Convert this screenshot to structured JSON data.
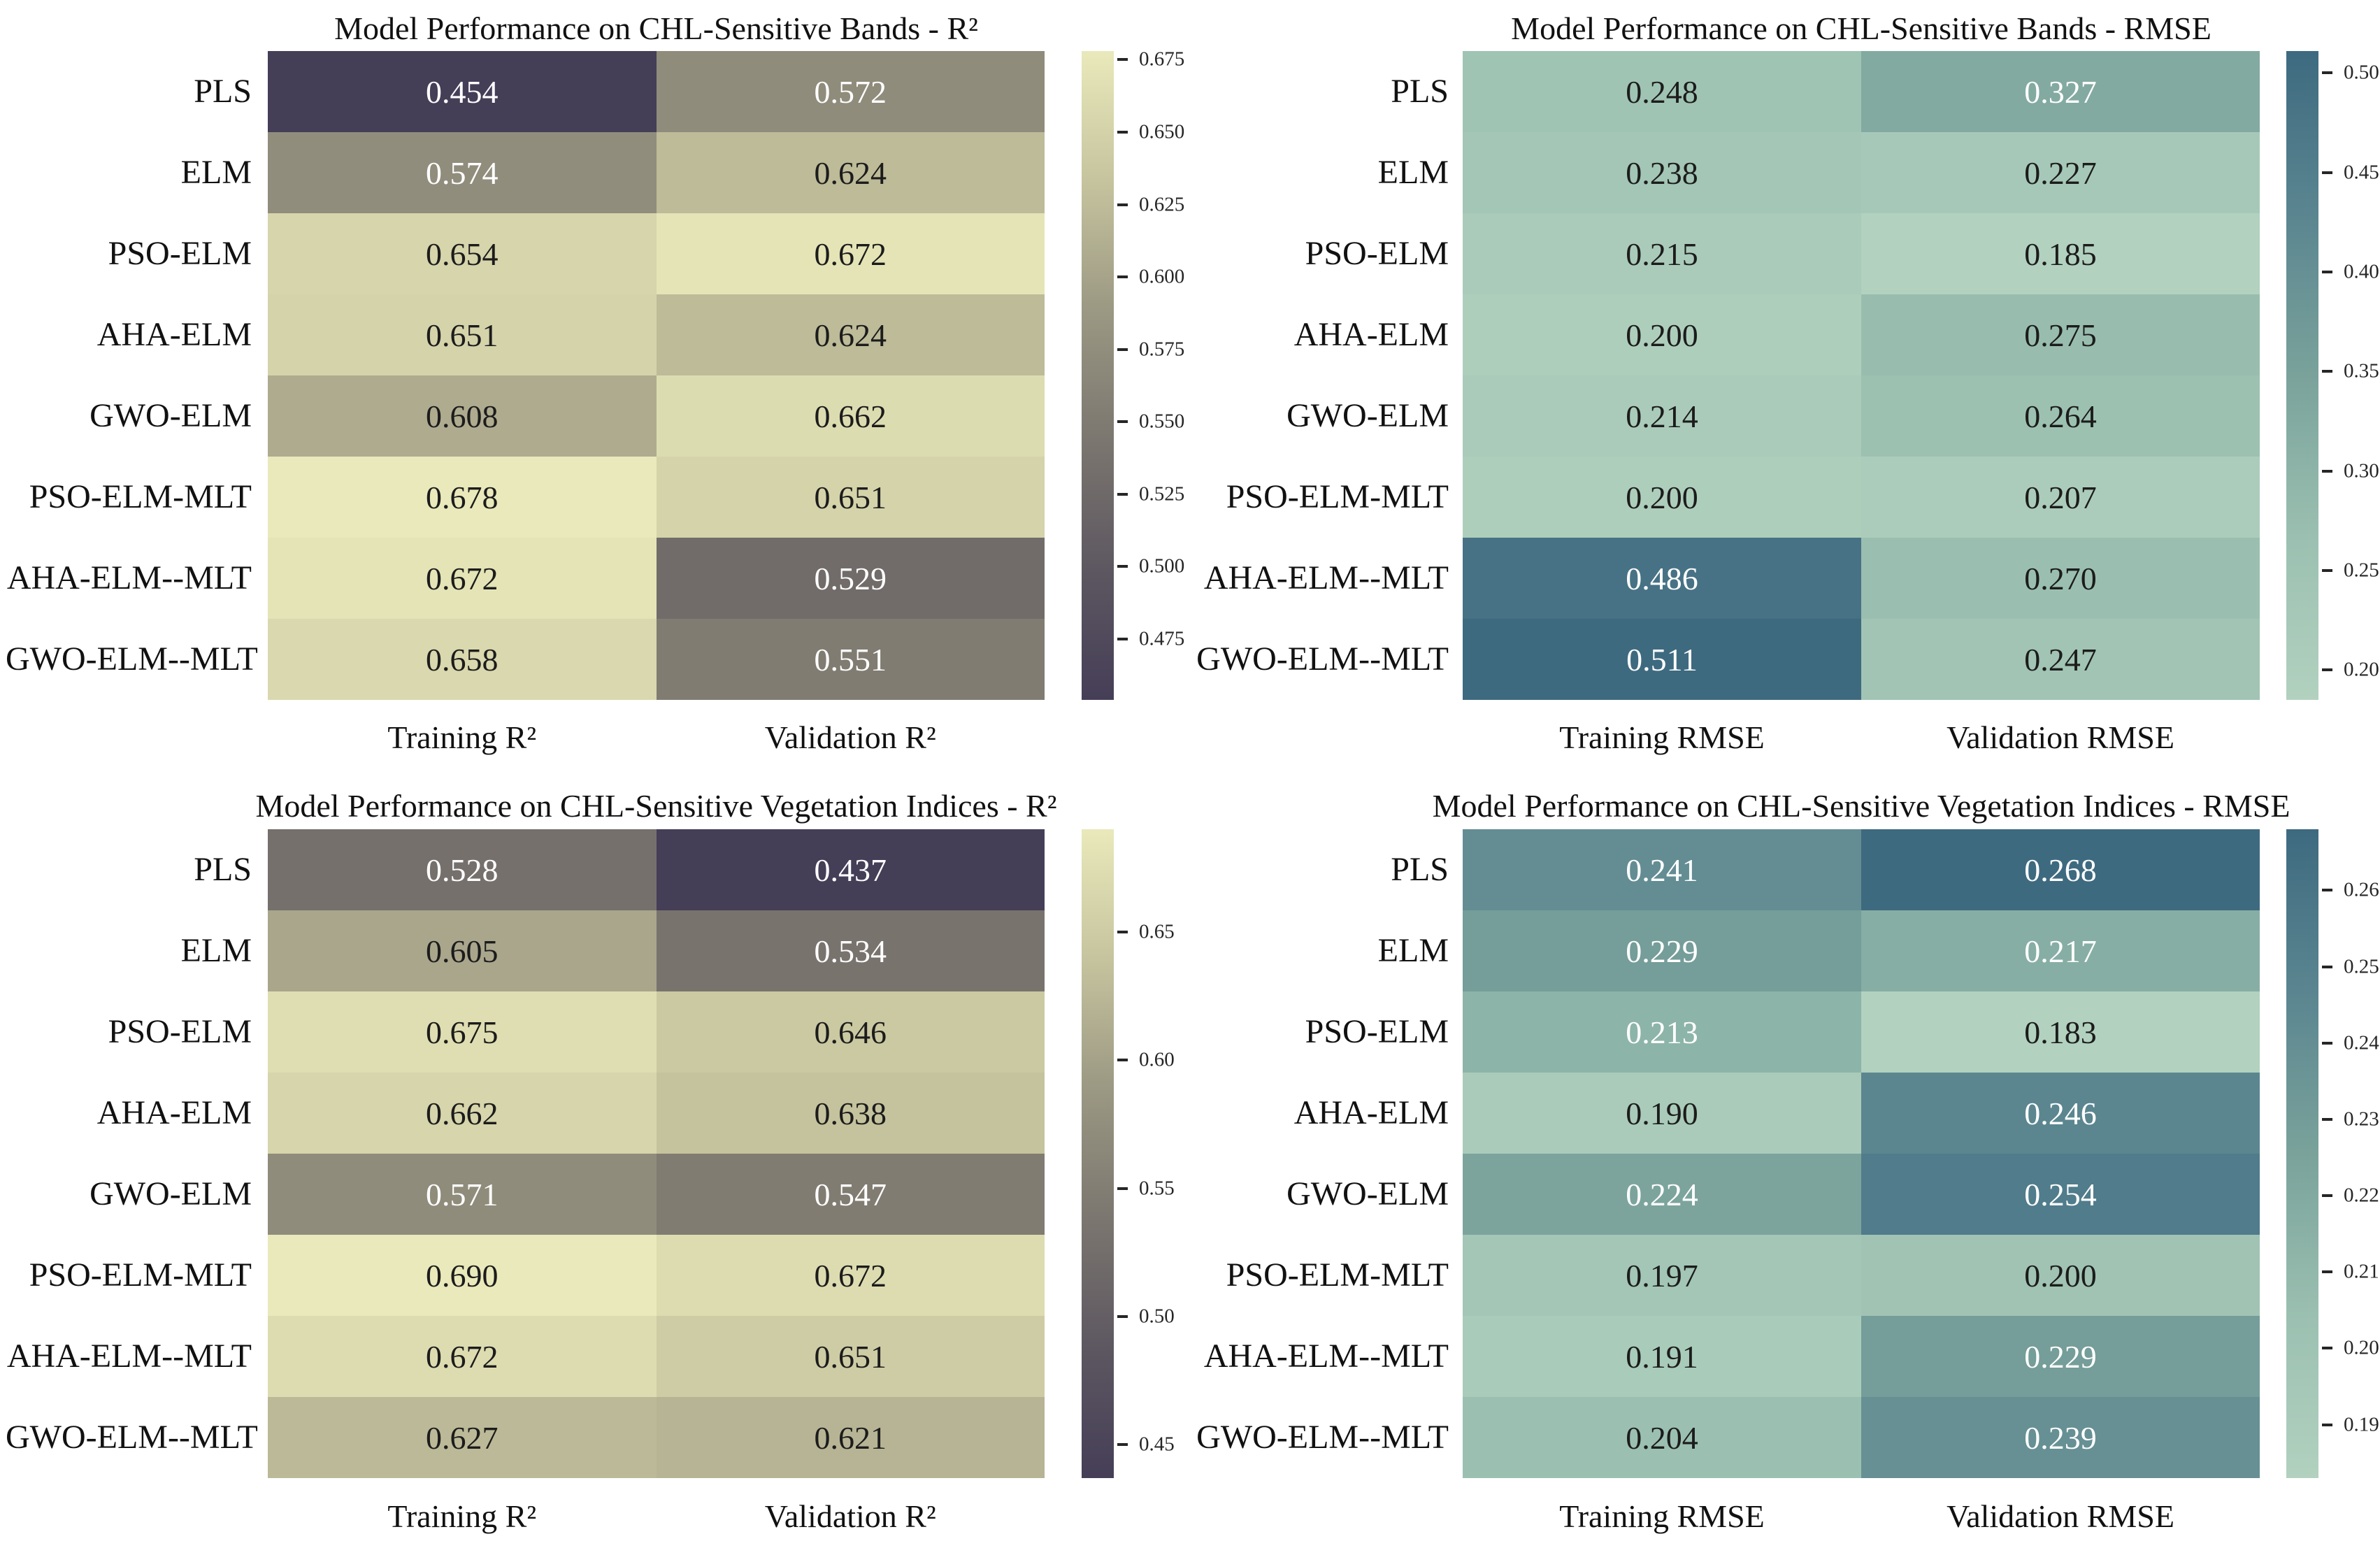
{
  "figure": {
    "background": "#ffffff",
    "description": "Four heatmaps comparing model performance (R2 and RMSE) on CHL-sensitive bands and vegetation indices"
  },
  "annotation_colors": {
    "dark": "#1c1c1c",
    "light": "#ffffff"
  },
  "colormaps": {
    "r2": {
      "stops": [
        [
          0.0,
          "#453e57"
        ],
        [
          0.2,
          "#5d5761"
        ],
        [
          0.4,
          "#7b766f"
        ],
        [
          0.6,
          "#9b9883"
        ],
        [
          0.8,
          "#c6c49e"
        ],
        [
          1.0,
          "#e9e9bb"
        ]
      ],
      "white_text_when": "below",
      "threshold": 0.6
    },
    "rmse": {
      "stops": [
        [
          0.0,
          "#b2d1bf"
        ],
        [
          0.25,
          "#9bc0b1"
        ],
        [
          0.5,
          "#7aa29b"
        ],
        [
          0.75,
          "#5a8590"
        ],
        [
          1.0,
          "#3e6a80"
        ]
      ],
      "white_text_when": "above",
      "threshold": 0.3
    }
  },
  "chart_data": [
    {
      "type": "heatmap",
      "id": "bands-r2",
      "position": "top-left",
      "title": "Model Performance on CHL-Sensitive Bands - R²",
      "rows": [
        "PLS",
        "ELM",
        "PSO-ELM",
        "AHA-ELM",
        "GWO-ELM",
        "PSO-ELM-MLT",
        "AHA-ELM--MLT",
        "GWO-ELM--MLT"
      ],
      "columns": [
        "Training R²",
        "Validation R²"
      ],
      "values": [
        [
          0.454,
          0.572
        ],
        [
          0.574,
          0.624
        ],
        [
          0.654,
          0.672
        ],
        [
          0.651,
          0.624
        ],
        [
          0.608,
          0.662
        ],
        [
          0.678,
          0.651
        ],
        [
          0.672,
          0.529
        ],
        [
          0.658,
          0.551
        ]
      ],
      "vmin": 0.454,
      "vmax": 0.678,
      "colormap": "r2",
      "value_decimals": 3,
      "colorbar_ticks": [
        "0.675",
        "0.650",
        "0.625",
        "0.600",
        "0.575",
        "0.550",
        "0.525",
        "0.500",
        "0.475"
      ],
      "legend_position": "right",
      "grid": false
    },
    {
      "type": "heatmap",
      "id": "bands-rmse",
      "position": "top-right",
      "title": "Model Performance on CHL-Sensitive Bands - RMSE",
      "rows": [
        "PLS",
        "ELM",
        "PSO-ELM",
        "AHA-ELM",
        "GWO-ELM",
        "PSO-ELM-MLT",
        "AHA-ELM--MLT",
        "GWO-ELM--MLT"
      ],
      "columns": [
        "Training RMSE",
        "Validation RMSE"
      ],
      "values": [
        [
          0.248,
          0.327
        ],
        [
          0.238,
          0.227
        ],
        [
          0.215,
          0.185
        ],
        [
          0.2,
          0.275
        ],
        [
          0.214,
          0.264
        ],
        [
          0.2,
          0.207
        ],
        [
          0.486,
          0.27
        ],
        [
          0.511,
          0.247
        ]
      ],
      "vmin": 0.185,
      "vmax": 0.511,
      "colormap": "rmse",
      "value_decimals": 3,
      "colorbar_ticks": [
        "0.50",
        "0.45",
        "0.40",
        "0.35",
        "0.30",
        "0.25",
        "0.20"
      ],
      "legend_position": "right",
      "grid": false
    },
    {
      "type": "heatmap",
      "id": "vi-r2",
      "position": "bottom-left",
      "title": "Model Performance on CHL-Sensitive Vegetation Indices - R²",
      "rows": [
        "PLS",
        "ELM",
        "PSO-ELM",
        "AHA-ELM",
        "GWO-ELM",
        "PSO-ELM-MLT",
        "AHA-ELM--MLT",
        "GWO-ELM--MLT"
      ],
      "columns": [
        "Training R²",
        "Validation R²"
      ],
      "values": [
        [
          0.528,
          0.437
        ],
        [
          0.605,
          0.534
        ],
        [
          0.675,
          0.646
        ],
        [
          0.662,
          0.638
        ],
        [
          0.571,
          0.547
        ],
        [
          0.69,
          0.672
        ],
        [
          0.672,
          0.651
        ],
        [
          0.627,
          0.621
        ]
      ],
      "vmin": 0.437,
      "vmax": 0.69,
      "colormap": "r2",
      "value_decimals": 3,
      "colorbar_ticks": [
        "0.65",
        "0.60",
        "0.55",
        "0.50",
        "0.45"
      ],
      "legend_position": "right",
      "grid": false
    },
    {
      "type": "heatmap",
      "id": "vi-rmse",
      "position": "bottom-right",
      "title": "Model Performance on CHL-Sensitive Vegetation Indices - RMSE",
      "rows": [
        "PLS",
        "ELM",
        "PSO-ELM",
        "AHA-ELM",
        "GWO-ELM",
        "PSO-ELM-MLT",
        "AHA-ELM--MLT",
        "GWO-ELM--MLT"
      ],
      "columns": [
        "Training RMSE",
        "Validation RMSE"
      ],
      "values": [
        [
          0.241,
          0.268
        ],
        [
          0.229,
          0.217
        ],
        [
          0.213,
          0.183
        ],
        [
          0.19,
          0.246
        ],
        [
          0.224,
          0.254
        ],
        [
          0.197,
          0.2
        ],
        [
          0.191,
          0.229
        ],
        [
          0.204,
          0.239
        ]
      ],
      "vmin": 0.183,
      "vmax": 0.268,
      "colormap": "rmse",
      "value_decimals": 3,
      "colorbar_ticks": [
        "0.26",
        "0.25",
        "0.24",
        "0.23",
        "0.22",
        "0.21",
        "0.20",
        "0.19"
      ],
      "legend_position": "right",
      "grid": false
    }
  ]
}
